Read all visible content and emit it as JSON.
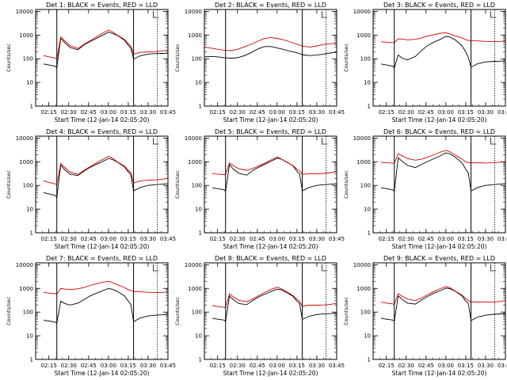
{
  "chart_data": [
    {
      "type": "line",
      "title": "Det 1: BLACK = Events, RED = LLD",
      "xlabel": "Start Time (12-Jan-14 02:05:20)",
      "ylabel": "Counts/sec",
      "x_ticks": [
        "02:15",
        "02:30",
        "02:45",
        "03:00",
        "03:15",
        "03:30",
        "03:45"
      ],
      "y_ticks": [
        "1",
        "10",
        "100",
        "1000",
        "10000"
      ],
      "ylim": [
        1,
        12000
      ],
      "y_scale": "log",
      "x": [
        "02:11",
        "02:15",
        "02:20",
        "02:21",
        "02:24",
        "02:27",
        "02:31",
        "02:37",
        "02:42",
        "02:46",
        "02:51",
        "02:56",
        "03:00",
        "03:03",
        "03:07",
        "03:12",
        "03:15",
        "03:17",
        "03:19",
        "03:24",
        "03:30",
        "03:36",
        "03:41",
        "03:45"
      ],
      "series": [
        {
          "color": "#000000",
          "values": [
            60,
            52,
            46,
            40,
            750,
            500,
            300,
            230,
            380,
            520,
            750,
            1050,
            1350,
            1150,
            900,
            600,
            380,
            300,
            100,
            130,
            150,
            160,
            170,
            180
          ]
        },
        {
          "color": "#d40000",
          "values": [
            130,
            120,
            110,
            100,
            850,
            550,
            340,
            270,
            440,
            600,
            850,
            1200,
            1550,
            1350,
            1000,
            700,
            450,
            330,
            150,
            180,
            200,
            210,
            220,
            230
          ]
        }
      ]
    },
    {
      "type": "line",
      "title": "Det 2: BLACK = Events, RED = LLD",
      "xlabel": "Start Time (12-Jan-14 02:05:20)",
      "ylabel": "Counts/sec",
      "x_ticks": [
        "02:15",
        "02:30",
        "02:45",
        "03:00",
        "03:15",
        "03:30",
        "03:45"
      ],
      "y_ticks": [
        "1",
        "10",
        "100",
        "1000",
        "10000"
      ],
      "ylim": [
        1,
        12000
      ],
      "y_scale": "log",
      "x": [
        "02:05",
        "02:10",
        "02:15",
        "02:20",
        "02:25",
        "02:30",
        "02:35",
        "02:40",
        "02:45",
        "02:50",
        "02:55",
        "03:00",
        "03:05",
        "03:10",
        "03:15",
        "03:20",
        "03:25",
        "03:30",
        "03:35",
        "03:40",
        "03:45"
      ],
      "series": [
        {
          "color": "#000000",
          "values": [
            120,
            120,
            115,
            110,
            110,
            115,
            135,
            170,
            240,
            320,
            340,
            300,
            250,
            200,
            170,
            140,
            140,
            150,
            160,
            170,
            180
          ]
        },
        {
          "color": "#d40000",
          "values": [
            300,
            280,
            260,
            240,
            220,
            240,
            300,
            400,
            550,
            750,
            800,
            700,
            600,
            500,
            420,
            350,
            320,
            340,
            380,
            420,
            450
          ]
        }
      ]
    },
    {
      "type": "line",
      "title": "Det 3: BLACK = Events, RED = LLD",
      "xlabel": "Start Time (12-Jan-14 02:05:20)",
      "ylabel": "Counts/sec",
      "x_ticks": [
        "02:15",
        "02:30",
        "02:45",
        "03:00",
        "03:15",
        "03:30",
        "03:45"
      ],
      "y_ticks": [
        "1",
        "10",
        "100",
        "1000",
        "10000"
      ],
      "ylim": [
        1,
        12000
      ],
      "y_scale": "log",
      "x": [
        "02:11",
        "02:15",
        "02:20",
        "02:21",
        "02:24",
        "02:27",
        "02:31",
        "02:37",
        "02:42",
        "02:46",
        "02:51",
        "02:56",
        "03:00",
        "03:03",
        "03:07",
        "03:12",
        "03:15",
        "03:17",
        "03:19",
        "03:24",
        "03:30",
        "03:36",
        "03:41",
        "03:45"
      ],
      "series": [
        {
          "color": "#000000",
          "values": [
            60,
            52,
            46,
            40,
            150,
            110,
            90,
            120,
            220,
            350,
            520,
            700,
            900,
            800,
            600,
            350,
            200,
            120,
            45,
            60,
            70,
            75,
            80,
            85
          ]
        },
        {
          "color": "#d40000",
          "values": [
            500,
            500,
            500,
            500,
            700,
            650,
            600,
            650,
            800,
            950,
            1050,
            1150,
            1200,
            1100,
            950,
            800,
            650,
            580,
            550,
            550,
            550,
            550,
            550,
            550
          ]
        }
      ]
    },
    {
      "type": "line",
      "title": "Det 4: BLACK = Events, RED = LLD",
      "xlabel": "Start Time (12-Jan-14 02:05:20)",
      "ylabel": "Counts/sec",
      "x_ticks": [
        "02:15",
        "02:30",
        "02:45",
        "03:00",
        "03:15",
        "03:30",
        "03:45"
      ],
      "y_ticks": [
        "1",
        "10",
        "100",
        "1000",
        "10000"
      ],
      "ylim": [
        1,
        12000
      ],
      "y_scale": "log",
      "x": [
        "02:11",
        "02:15",
        "02:20",
        "02:21",
        "02:24",
        "02:27",
        "02:31",
        "02:37",
        "02:42",
        "02:46",
        "02:51",
        "02:56",
        "03:00",
        "03:03",
        "03:07",
        "03:12",
        "03:15",
        "03:17",
        "03:19",
        "03:24",
        "03:30",
        "03:36",
        "03:41",
        "03:45"
      ],
      "series": [
        {
          "color": "#000000",
          "values": [
            50,
            42,
            36,
            30,
            750,
            480,
            300,
            250,
            400,
            560,
            800,
            1100,
            1400,
            1200,
            900,
            600,
            380,
            300,
            60,
            80,
            95,
            105,
            115,
            125
          ]
        },
        {
          "color": "#d40000",
          "values": [
            150,
            135,
            120,
            110,
            850,
            550,
            350,
            290,
            460,
            640,
            900,
            1250,
            1600,
            1380,
            1000,
            700,
            450,
            340,
            120,
            150,
            170,
            180,
            190,
            200
          ]
        }
      ]
    },
    {
      "type": "line",
      "title": "Det 5: BLACK = Events, RED = LLD",
      "xlabel": "Start Time (12-Jan-14 02:05:20)",
      "ylabel": "Counts/sec",
      "x_ticks": [
        "02:15",
        "02:30",
        "02:45",
        "03:00",
        "03:15",
        "03:30",
        "03:45"
      ],
      "y_ticks": [
        "1",
        "10",
        "100",
        "1000",
        "10000"
      ],
      "ylim": [
        1,
        12000
      ],
      "y_scale": "log",
      "x": [
        "02:11",
        "02:15",
        "02:20",
        "02:21",
        "02:24",
        "02:27",
        "02:31",
        "02:37",
        "02:42",
        "02:46",
        "02:51",
        "02:56",
        "03:00",
        "03:03",
        "03:07",
        "03:12",
        "03:15",
        "03:17",
        "03:19",
        "03:24",
        "03:30",
        "03:36",
        "03:41",
        "03:45"
      ],
      "series": [
        {
          "color": "#000000",
          "values": [
            80,
            70,
            62,
            55,
            800,
            500,
            330,
            260,
            420,
            580,
            820,
            1150,
            1450,
            1250,
            950,
            650,
            400,
            320,
            60,
            80,
            95,
            105,
            115,
            125
          ]
        },
        {
          "color": "#d40000",
          "values": [
            300,
            300,
            300,
            300,
            900,
            650,
            480,
            430,
            550,
            700,
            900,
            1200,
            1500,
            1300,
            1000,
            720,
            500,
            400,
            280,
            300,
            320,
            340,
            360,
            380
          ]
        }
      ]
    },
    {
      "type": "line",
      "title": "Det 6: BLACK = Events, RED = LLD",
      "xlabel": "Start Time (12-Jan-14 02:05:20)",
      "ylabel": "Counts/sec",
      "x_ticks": [
        "02:15",
        "02:30",
        "02:45",
        "03:00",
        "03:15",
        "03:30",
        "03:45"
      ],
      "y_ticks": [
        "1",
        "10",
        "100",
        "1000",
        "10000"
      ],
      "ylim": [
        1,
        12000
      ],
      "y_scale": "log",
      "x": [
        "02:11",
        "02:15",
        "02:20",
        "02:21",
        "02:24",
        "02:27",
        "02:31",
        "02:37",
        "02:42",
        "02:46",
        "02:51",
        "02:56",
        "03:00",
        "03:03",
        "03:07",
        "03:12",
        "03:15",
        "03:17",
        "03:19",
        "03:24",
        "03:30",
        "03:36",
        "03:41",
        "03:45"
      ],
      "series": [
        {
          "color": "#000000",
          "values": [
            80,
            70,
            62,
            55,
            1500,
            1100,
            700,
            550,
            750,
            1000,
            1400,
            1900,
            2400,
            2100,
            1500,
            900,
            500,
            350,
            60,
            80,
            95,
            105,
            115,
            125
          ]
        },
        {
          "color": "#d40000",
          "values": [
            900,
            900,
            900,
            900,
            2200,
            1700,
            1300,
            1150,
            1350,
            1650,
            2000,
            2500,
            2900,
            2600,
            2000,
            1400,
            1000,
            900,
            850,
            880,
            900,
            950,
            980,
            1000
          ]
        }
      ]
    },
    {
      "type": "line",
      "title": "Det 7: BLACK = Events, RED = LLD",
      "xlabel": "Start Time (12-Jan-14 02:05:20)",
      "ylabel": "Counts/sec",
      "x_ticks": [
        "02:15",
        "02:30",
        "02:45",
        "03:00",
        "03:15",
        "03:30",
        "03:45"
      ],
      "y_ticks": [
        "1",
        "10",
        "100",
        "1000",
        "10000"
      ],
      "ylim": [
        1,
        12000
      ],
      "y_scale": "log",
      "x": [
        "02:11",
        "02:15",
        "02:20",
        "02:21",
        "02:24",
        "02:27",
        "02:31",
        "02:37",
        "02:42",
        "02:46",
        "02:51",
        "02:56",
        "03:00",
        "03:03",
        "03:07",
        "03:12",
        "03:15",
        "03:17",
        "03:19",
        "03:24",
        "03:30",
        "03:36",
        "03:41",
        "03:45"
      ],
      "series": [
        {
          "color": "#000000",
          "values": [
            45,
            40,
            36,
            33,
            300,
            240,
            200,
            230,
            330,
            470,
            650,
            850,
            1000,
            900,
            700,
            480,
            300,
            220,
            40,
            55,
            65,
            72,
            78,
            85
          ]
        },
        {
          "color": "#d40000",
          "values": [
            650,
            630,
            620,
            600,
            1000,
            900,
            850,
            950,
            1150,
            1400,
            1600,
            1800,
            1900,
            1750,
            1450,
            1150,
            900,
            800,
            700,
            700,
            700,
            700,
            700,
            700
          ]
        }
      ]
    },
    {
      "type": "line",
      "title": "Det 8: BLACK = Events, RED = LLD",
      "xlabel": "Start Time (12-Jan-14 02:05:20)",
      "ylabel": "Counts/sec",
      "x_ticks": [
        "02:15",
        "02:30",
        "02:45",
        "03:00",
        "03:15",
        "03:30",
        "03:45"
      ],
      "y_ticks": [
        "1",
        "10",
        "100",
        "1000",
        "10000"
      ],
      "ylim": [
        1,
        12000
      ],
      "y_scale": "log",
      "x": [
        "02:11",
        "02:15",
        "02:20",
        "02:21",
        "02:24",
        "02:27",
        "02:31",
        "02:37",
        "02:42",
        "02:46",
        "02:51",
        "02:56",
        "03:00",
        "03:03",
        "03:07",
        "03:12",
        "03:15",
        "03:17",
        "03:19",
        "03:24",
        "03:30",
        "03:36",
        "03:41",
        "03:45"
      ],
      "series": [
        {
          "color": "#000000",
          "values": [
            55,
            48,
            44,
            40,
            500,
            350,
            230,
            200,
            300,
            430,
            600,
            800,
            950,
            850,
            650,
            450,
            300,
            240,
            50,
            65,
            75,
            82,
            88,
            95
          ]
        },
        {
          "color": "#d40000",
          "values": [
            180,
            170,
            165,
            160,
            600,
            420,
            300,
            270,
            380,
            520,
            700,
            900,
            1050,
            950,
            750,
            520,
            350,
            280,
            170,
            190,
            200,
            210,
            220,
            230
          ]
        }
      ]
    },
    {
      "type": "line",
      "title": "Det 9: BLACK = Events, RED = LLD",
      "xlabel": "Start Time (12-Jan-14 02:05:20)",
      "ylabel": "Counts/sec",
      "x_ticks": [
        "02:15",
        "02:30",
        "02:45",
        "03:00",
        "03:15",
        "03:30",
        "03:45"
      ],
      "y_ticks": [
        "1",
        "10",
        "100",
        "1000",
        "10000"
      ],
      "ylim": [
        1,
        12000
      ],
      "y_scale": "log",
      "x": [
        "02:11",
        "02:15",
        "02:20",
        "02:21",
        "02:24",
        "02:27",
        "02:31",
        "02:37",
        "02:42",
        "02:46",
        "02:51",
        "02:56",
        "03:00",
        "03:03",
        "03:07",
        "03:12",
        "03:15",
        "03:17",
        "03:19",
        "03:24",
        "03:30",
        "03:36",
        "03:41",
        "03:45"
      ],
      "series": [
        {
          "color": "#000000",
          "values": [
            55,
            48,
            44,
            40,
            500,
            360,
            240,
            210,
            320,
            450,
            650,
            850,
            1050,
            950,
            720,
            480,
            300,
            240,
            45,
            60,
            70,
            78,
            85,
            90
          ]
        },
        {
          "color": "#d40000",
          "values": [
            250,
            240,
            230,
            220,
            600,
            450,
            340,
            300,
            420,
            560,
            750,
            950,
            1150,
            1050,
            800,
            560,
            380,
            300,
            250,
            260,
            270,
            280,
            290,
            300
          ]
        }
      ]
    }
  ]
}
